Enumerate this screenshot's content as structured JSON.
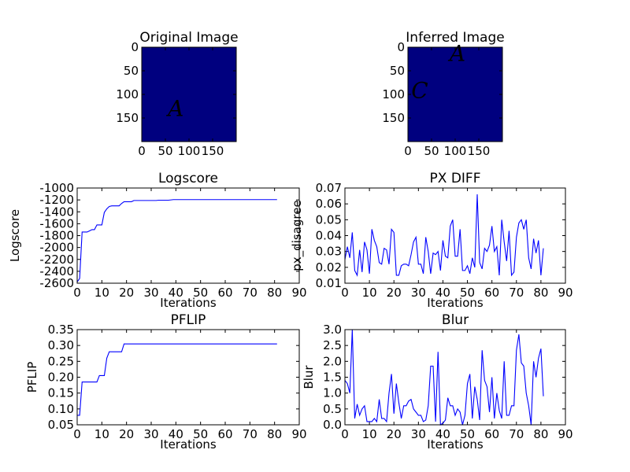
{
  "chart_data": [
    {
      "type": "image",
      "title": "Original Image",
      "background": "#00007f",
      "glyph_color": "#a00000",
      "xlim": [
        0,
        200
      ],
      "ylim": [
        200,
        0
      ],
      "xticks": [
        0,
        50,
        100,
        150
      ],
      "yticks": [
        0,
        50,
        100,
        150
      ],
      "glyphs": [
        {
          "text": "A",
          "x": 72,
          "y": 130
        }
      ]
    },
    {
      "type": "image",
      "title": "Inferred Image",
      "background": "#00007f",
      "glyph_color": "#a00000",
      "xlim": [
        0,
        200
      ],
      "ylim": [
        200,
        0
      ],
      "xticks": [
        0,
        50,
        100,
        150
      ],
      "yticks": [
        0,
        50,
        100,
        150
      ],
      "glyphs": [
        {
          "text": "A",
          "x": 105,
          "y": 13
        },
        {
          "text": "C",
          "x": 25,
          "y": 92
        }
      ]
    },
    {
      "type": "line",
      "title": "Logscore",
      "xlabel": "Iterations",
      "ylabel": "Logscore",
      "color": "#0000ff",
      "xlim": [
        0,
        90
      ],
      "ylim": [
        -2600,
        -1000
      ],
      "xticks": [
        0,
        10,
        20,
        30,
        40,
        50,
        60,
        70,
        80,
        90
      ],
      "yticks": [
        -2600,
        -2400,
        -2200,
        -2000,
        -1800,
        -1600,
        -1400,
        -1200,
        -1000
      ],
      "x": [
        0,
        1,
        2,
        3,
        4,
        5,
        6,
        7,
        8,
        9,
        10,
        11,
        12,
        13,
        14,
        15,
        16,
        17,
        18,
        19,
        20,
        21,
        22,
        23,
        24,
        25,
        26,
        27,
        28,
        29,
        30,
        31,
        32,
        33,
        34,
        35,
        36,
        37,
        38,
        39,
        40,
        41,
        42,
        43,
        44,
        45,
        46,
        47,
        48,
        49,
        50,
        51,
        52,
        53,
        54,
        55,
        56,
        57,
        58,
        59,
        60,
        61,
        62,
        63,
        64,
        65,
        66,
        67,
        68,
        69,
        70,
        71,
        72,
        73,
        74,
        75,
        76,
        77,
        78,
        79,
        80,
        81
      ],
      "values": [
        -2580,
        -2520,
        -1740,
        -1740,
        -1740,
        -1720,
        -1700,
        -1700,
        -1620,
        -1620,
        -1620,
        -1410,
        -1350,
        -1310,
        -1300,
        -1300,
        -1300,
        -1300,
        -1260,
        -1230,
        -1230,
        -1230,
        -1230,
        -1210,
        -1210,
        -1210,
        -1210,
        -1210,
        -1210,
        -1210,
        -1210,
        -1210,
        -1210,
        -1205,
        -1205,
        -1205,
        -1205,
        -1205,
        -1200,
        -1195,
        -1195,
        -1195,
        -1195,
        -1195,
        -1195,
        -1195,
        -1195,
        -1195,
        -1195,
        -1195,
        -1195,
        -1195,
        -1195,
        -1195,
        -1195,
        -1195,
        -1195,
        -1195,
        -1195,
        -1195,
        -1195,
        -1195,
        -1195,
        -1195,
        -1195,
        -1195,
        -1195,
        -1195,
        -1195,
        -1195,
        -1195,
        -1195,
        -1195,
        -1195,
        -1195,
        -1195,
        -1195,
        -1195,
        -1195,
        -1195,
        -1195,
        -1195
      ]
    },
    {
      "type": "line",
      "title": "PX DIFF",
      "xlabel": "Iterations",
      "ylabel": "px_disagree",
      "color": "#0000ff",
      "xlim": [
        0,
        90
      ],
      "ylim": [
        0.01,
        0.07
      ],
      "xticks": [
        0,
        10,
        20,
        30,
        40,
        50,
        60,
        70,
        80,
        90
      ],
      "yticks": [
        0.01,
        0.02,
        0.03,
        0.04,
        0.05,
        0.06,
        0.07
      ],
      "x": [
        0,
        1,
        2,
        3,
        4,
        5,
        6,
        7,
        8,
        9,
        10,
        11,
        12,
        13,
        14,
        15,
        16,
        17,
        18,
        19,
        20,
        21,
        22,
        23,
        24,
        25,
        26,
        27,
        28,
        29,
        30,
        31,
        32,
        33,
        34,
        35,
        36,
        37,
        38,
        39,
        40,
        41,
        42,
        43,
        44,
        45,
        46,
        47,
        48,
        49,
        50,
        51,
        52,
        53,
        54,
        55,
        56,
        57,
        58,
        59,
        60,
        61,
        62,
        63,
        64,
        65,
        66,
        67,
        68,
        69,
        70,
        71,
        72,
        73,
        74,
        75,
        76,
        77,
        78,
        79,
        80,
        81
      ],
      "values": [
        0.025,
        0.033,
        0.026,
        0.042,
        0.018,
        0.015,
        0.031,
        0.017,
        0.036,
        0.031,
        0.016,
        0.044,
        0.037,
        0.033,
        0.023,
        0.022,
        0.032,
        0.031,
        0.022,
        0.044,
        0.042,
        0.015,
        0.015,
        0.021,
        0.022,
        0.022,
        0.021,
        0.028,
        0.036,
        0.039,
        0.022,
        0.022,
        0.016,
        0.039,
        0.03,
        0.016,
        0.029,
        0.028,
        0.03,
        0.018,
        0.037,
        0.027,
        0.026,
        0.046,
        0.05,
        0.027,
        0.027,
        0.044,
        0.018,
        0.018,
        0.021,
        0.016,
        0.026,
        0.02,
        0.066,
        0.023,
        0.019,
        0.032,
        0.03,
        0.034,
        0.046,
        0.03,
        0.033,
        0.015,
        0.05,
        0.036,
        0.024,
        0.043,
        0.015,
        0.017,
        0.039,
        0.048,
        0.05,
        0.044,
        0.05,
        0.026,
        0.019,
        0.038,
        0.029,
        0.037,
        0.015,
        0.032
      ]
    },
    {
      "type": "line",
      "title": "PFLIP",
      "xlabel": "Iterations",
      "ylabel": "PFLIP",
      "color": "#0000ff",
      "xlim": [
        0,
        90
      ],
      "ylim": [
        0.05,
        0.35
      ],
      "xticks": [
        0,
        10,
        20,
        30,
        40,
        50,
        60,
        70,
        80,
        90
      ],
      "yticks": [
        0.05,
        {
          "value": 0.1,
          "label": "0.10"
        },
        0.15,
        {
          "value": 0.2,
          "label": "0.20"
        },
        0.25,
        {
          "value": 0.3,
          "label": "0.30"
        },
        0.35
      ],
      "x": [
        0,
        1,
        2,
        3,
        4,
        5,
        6,
        7,
        8,
        9,
        10,
        11,
        12,
        13,
        14,
        15,
        16,
        17,
        18,
        19,
        20,
        21,
        22,
        23,
        24,
        25,
        26,
        27,
        28,
        29,
        30,
        31,
        32,
        33,
        34,
        35,
        36,
        37,
        38,
        39,
        40,
        41,
        42,
        43,
        44,
        45,
        46,
        47,
        48,
        49,
        50,
        51,
        52,
        53,
        54,
        55,
        56,
        57,
        58,
        59,
        60,
        61,
        62,
        63,
        64,
        65,
        66,
        67,
        68,
        69,
        70,
        71,
        72,
        73,
        74,
        75,
        76,
        77,
        78,
        79,
        80,
        81
      ],
      "values": [
        0.08,
        0.08,
        0.185,
        0.185,
        0.185,
        0.185,
        0.185,
        0.185,
        0.185,
        0.205,
        0.205,
        0.205,
        0.26,
        0.28,
        0.28,
        0.28,
        0.28,
        0.28,
        0.28,
        0.305,
        0.305,
        0.305,
        0.305,
        0.305,
        0.305,
        0.305,
        0.305,
        0.305,
        0.305,
        0.305,
        0.305,
        0.305,
        0.305,
        0.305,
        0.305,
        0.305,
        0.305,
        0.305,
        0.305,
        0.305,
        0.305,
        0.305,
        0.305,
        0.305,
        0.305,
        0.305,
        0.305,
        0.305,
        0.305,
        0.305,
        0.305,
        0.305,
        0.305,
        0.305,
        0.305,
        0.305,
        0.305,
        0.305,
        0.305,
        0.305,
        0.305,
        0.305,
        0.305,
        0.305,
        0.305,
        0.305,
        0.305,
        0.305,
        0.305,
        0.305,
        0.305,
        0.305,
        0.305,
        0.305,
        0.305,
        0.305,
        0.305,
        0.305,
        0.305,
        0.305,
        0.305,
        0.305
      ]
    },
    {
      "type": "line",
      "title": "Blur",
      "xlabel": "Iterations",
      "ylabel": "Blur",
      "color": "#0000ff",
      "xlim": [
        0,
        90
      ],
      "ylim": [
        0,
        3
      ],
      "xticks": [
        0,
        10,
        20,
        30,
        40,
        50,
        60,
        70,
        80,
        90
      ],
      "yticks": [
        {
          "value": 0,
          "label": "0.0"
        },
        0.5,
        {
          "value": 1,
          "label": "1.0"
        },
        1.5,
        {
          "value": 2,
          "label": "2.0"
        },
        2.5,
        {
          "value": 3,
          "label": "3.0"
        }
      ],
      "x": [
        0,
        1,
        2,
        3,
        4,
        5,
        6,
        7,
        8,
        9,
        10,
        11,
        12,
        13,
        14,
        15,
        16,
        17,
        18,
        19,
        20,
        21,
        22,
        23,
        24,
        25,
        26,
        27,
        28,
        29,
        30,
        31,
        32,
        33,
        34,
        35,
        36,
        37,
        38,
        39,
        40,
        41,
        42,
        43,
        44,
        45,
        46,
        47,
        48,
        49,
        50,
        51,
        52,
        53,
        54,
        55,
        56,
        57,
        58,
        59,
        60,
        61,
        62,
        63,
        64,
        65,
        66,
        67,
        68,
        69,
        70,
        71,
        72,
        73,
        74,
        75,
        76,
        77,
        78,
        79,
        80,
        81
      ],
      "values": [
        1.4,
        1.3,
        1.0,
        3.0,
        0.2,
        0.65,
        0.3,
        0.5,
        0.6,
        0.1,
        0.1,
        0.1,
        0.2,
        0.1,
        0.8,
        0.2,
        0.2,
        0.1,
        1.0,
        1.6,
        0.35,
        1.3,
        0.7,
        0.2,
        0.6,
        0.6,
        0.75,
        0.8,
        0.5,
        0.4,
        0.3,
        0.3,
        0.1,
        0.15,
        0.6,
        1.85,
        1.85,
        0.1,
        2.3,
        0.0,
        0.05,
        0.15,
        0.85,
        0.6,
        0.6,
        0.3,
        0.5,
        0.4,
        0.0,
        0.3,
        1.3,
        1.6,
        0.2,
        1.2,
        0.8,
        0.15,
        2.35,
        1.4,
        1.2,
        0.4,
        1.5,
        0.2,
        1.0,
        0.45,
        0.2,
        2.0,
        0.3,
        0.3,
        0.6,
        0.6,
        2.35,
        2.85,
        1.95,
        1.85,
        1.0,
        0.6,
        0.0,
        2.0,
        1.5,
        2.1,
        2.4,
        0.9
      ]
    }
  ]
}
